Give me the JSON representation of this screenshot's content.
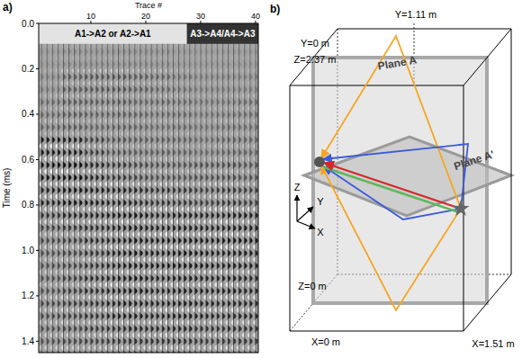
{
  "chart_data": {
    "type": "wiggle",
    "panel": "a)",
    "x_label": "Trace #",
    "y_label": "Time (ms)",
    "xlim": [
      0.5,
      40.5
    ],
    "ylim": [
      0,
      1.45
    ],
    "xticks": [
      10,
      20,
      30,
      40
    ],
    "yticks": [
      {
        "value": 0,
        "label": "0.0"
      },
      {
        "value": 0.2,
        "label": "0.2"
      },
      {
        "value": 0.4,
        "label": "0.4"
      },
      {
        "value": 0.6,
        "label": "0.6"
      },
      {
        "value": 0.8,
        "label": "0.8"
      },
      {
        "value": 1.0,
        "label": "1.0"
      },
      {
        "value": 1.2,
        "label": "1.2"
      },
      {
        "value": 1.4,
        "label": "1.4"
      }
    ],
    "grid": false,
    "x_edges": [
      0.5,
      4.5,
      8.5,
      12.5,
      16.5,
      20.5,
      24.5,
      28.5,
      32.5,
      36.5,
      40.5
    ],
    "y_edges": [
      0,
      0.1,
      0.2,
      0.3,
      0.4,
      0.5,
      0.6,
      0.7,
      0.8,
      0.9,
      1.0,
      1.1,
      1.2,
      1.3,
      1.4,
      1.5
    ],
    "values": [
      [
        0.1,
        0.1,
        0.1,
        0.1,
        0.1,
        0.1,
        0.1,
        0.1,
        0.1,
        0.1
      ],
      [
        0.1,
        0.15,
        0.15,
        0.15,
        0.15,
        0.15,
        0.1,
        0.1,
        0.1,
        0.1
      ],
      [
        0.2,
        0.4,
        0.45,
        0.45,
        0.4,
        0.35,
        0.25,
        0.2,
        0.2,
        0.2
      ],
      [
        0.3,
        0.4,
        0.4,
        0.4,
        0.35,
        0.35,
        0.3,
        0.25,
        0.25,
        0.3
      ],
      [
        0.35,
        0.4,
        0.35,
        0.35,
        0.35,
        0.3,
        0.3,
        0.25,
        0.3,
        0.3
      ],
      [
        0.85,
        0.8,
        0.6,
        0.45,
        0.4,
        0.4,
        0.35,
        0.3,
        0.35,
        0.35
      ],
      [
        0.9,
        0.9,
        0.8,
        0.65,
        0.55,
        0.5,
        0.45,
        0.5,
        0.5,
        0.45
      ],
      [
        0.8,
        0.85,
        0.85,
        0.8,
        0.75,
        0.7,
        0.65,
        0.6,
        0.65,
        0.6
      ],
      [
        0.7,
        0.75,
        0.8,
        0.85,
        0.85,
        0.8,
        0.8,
        0.8,
        0.8,
        0.8
      ],
      [
        0.55,
        0.6,
        0.75,
        0.8,
        0.85,
        0.85,
        0.85,
        0.85,
        0.85,
        0.85
      ],
      [
        0.5,
        0.55,
        0.7,
        0.8,
        0.85,
        0.85,
        0.85,
        0.85,
        0.8,
        0.8
      ],
      [
        0.5,
        0.6,
        0.75,
        0.8,
        0.85,
        0.8,
        0.8,
        0.8,
        0.8,
        0.75
      ],
      [
        0.55,
        0.6,
        0.7,
        0.8,
        0.8,
        0.8,
        0.8,
        0.8,
        0.75,
        0.75
      ],
      [
        0.5,
        0.55,
        0.65,
        0.7,
        0.75,
        0.75,
        0.75,
        0.7,
        0.7,
        0.7
      ],
      [
        0.5,
        0.55,
        0.6,
        0.65,
        0.7,
        0.7,
        0.7,
        0.65,
        0.65,
        0.65
      ]
    ],
    "annotations": [
      {
        "text": "A1->A2 or A2->A1",
        "from": 0.5,
        "to": 27.5,
        "time_from": 0,
        "time_to": 0.09,
        "color": "#e3e3e3"
      },
      {
        "text": "A3->A4/A4->A3",
        "from": 27.5,
        "to": 40.5,
        "time_from": 0,
        "time_to": 0.09,
        "color": "#333333"
      }
    ]
  },
  "diagram": {
    "panel": "b)",
    "y_far": "Y=1.11 m",
    "y_near": "Y=0 m",
    "z_top": "Z=2.37 m",
    "plane_a": "Plane A",
    "plane_a2": "Plane A'",
    "axis_z": "Z",
    "axis_y": "Y",
    "axis_x": "X",
    "z_bottom": "Z=0 m",
    "x_left": "X=0 m",
    "x_right": "X=1.51 m"
  }
}
